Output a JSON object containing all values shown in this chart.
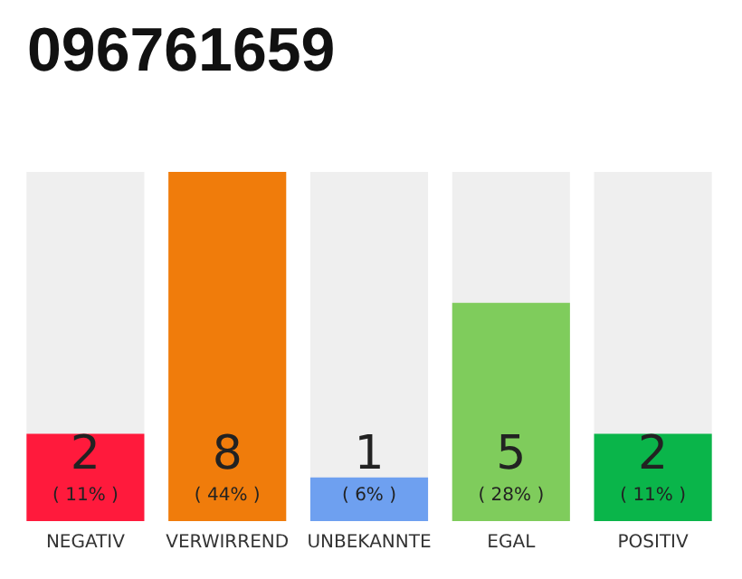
{
  "chart_data": {
    "type": "bar",
    "title": "096761659",
    "categories": [
      "NEGATIV",
      "VERWIRREND",
      "UNBEKANNTE",
      "EGAL",
      "POSITIV"
    ],
    "values": [
      2,
      8,
      1,
      5,
      2
    ],
    "colors": [
      "#ff1a3c",
      "#f07c0b",
      "#6ea0f0",
      "#7fcc5c",
      "#0ab54a"
    ],
    "value_labels": [
      "2\n( 11% )",
      "8\n( 44% )",
      "1\n( 6% )",
      "5\n( 28% )",
      "2\n( 11% )"
    ]
  }
}
